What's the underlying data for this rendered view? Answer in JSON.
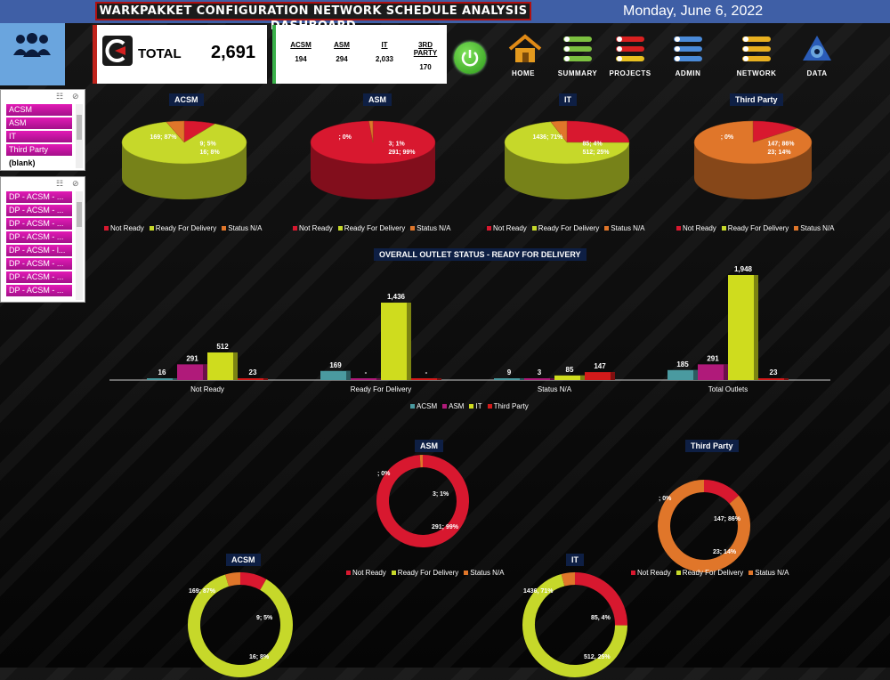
{
  "header": {
    "title": "WARKPAKKET CONFIGURATION NETWORK SCHEDULE ANALYSIS DASHBOARD",
    "date": "Monday, June 6, 2022"
  },
  "total_card": {
    "label": "TOTAL",
    "value": "2,691"
  },
  "stats": [
    {
      "label": "ACSM",
      "value": "194"
    },
    {
      "label": "ASM",
      "value": "294"
    },
    {
      "label": "IT",
      "value": "2,033"
    },
    {
      "label": "3RD PARTY",
      "value": "170"
    }
  ],
  "nav": [
    {
      "label": "HOME",
      "icon": "house-icon"
    },
    {
      "label": "SUMMARY",
      "icon": "list-icon"
    },
    {
      "label": "PROJECTS",
      "icon": "list-icon"
    },
    {
      "label": "ADMIN",
      "icon": "list-icon"
    },
    {
      "label": "NETWORK",
      "icon": "list-icon"
    },
    {
      "label": "DATA",
      "icon": "data-icon"
    }
  ],
  "slicer1": {
    "items": [
      "ACSM",
      "ASM",
      "IT",
      "Third Party",
      "(blank)"
    ]
  },
  "slicer2": {
    "items": [
      "DP - ACSM - ...",
      "DP - ACSM - ...",
      "DP - ACSM - ...",
      "DP - ACSM - ...",
      "DP - ACSM - l...",
      "DP - ACSM - ...",
      "DP - ACSM - ...",
      "DP - ACSM - ..."
    ]
  },
  "colors": {
    "not_ready": "#d8182f",
    "ready": "#c6d82a",
    "status_na": "#e0762a",
    "acsm": "#4a9aa0",
    "asm": "#b01a7a",
    "it": "#cfdc1e",
    "third": "#d41a1a"
  },
  "legend_status": [
    "Not Ready",
    "Ready For Delivery",
    "Status N/A"
  ],
  "legend_bar": [
    "ACSM",
    "ASM",
    "IT",
    "Third Party"
  ],
  "chart_data": [
    {
      "type": "pie",
      "title": "ACSM",
      "categories": [
        "Not Ready",
        "Ready For Delivery",
        "Status N/A"
      ],
      "values": [
        16,
        169,
        9
      ],
      "labels": [
        "16; 8%",
        "169; 87%",
        "9; 5%"
      ]
    },
    {
      "type": "pie",
      "title": "ASM",
      "categories": [
        "Not Ready",
        "Ready For Delivery",
        "Status N/A"
      ],
      "values": [
        291,
        0,
        3
      ],
      "labels": [
        "291; 99%",
        "; 0%",
        "3; 1%"
      ]
    },
    {
      "type": "pie",
      "title": "IT",
      "categories": [
        "Not Ready",
        "Ready For Delivery",
        "Status N/A"
      ],
      "values": [
        512,
        1436,
        85
      ],
      "labels": [
        "512; 25%",
        "1436; 71%",
        "85; 4%"
      ]
    },
    {
      "type": "pie",
      "title": "Third Party",
      "categories": [
        "Not Ready",
        "Ready For Delivery",
        "Status N/A"
      ],
      "values": [
        23,
        0,
        147
      ],
      "labels": [
        "23; 14%",
        "; 0%",
        "147; 86%"
      ]
    },
    {
      "type": "bar",
      "title": "OVERALL OUTLET STATUS - READY FOR DELIVERY",
      "categories": [
        "Not Ready",
        "Ready For Delivery",
        "Status N/A",
        "Total Outlets"
      ],
      "series": [
        {
          "name": "ACSM",
          "values": [
            16,
            169,
            9,
            185
          ],
          "labels": [
            "16",
            "169",
            "9",
            "185"
          ]
        },
        {
          "name": "ASM",
          "values": [
            291,
            0,
            3,
            291
          ],
          "labels": [
            "291",
            "-",
            "3",
            "291"
          ]
        },
        {
          "name": "IT",
          "values": [
            512,
            1436,
            85,
            1948
          ],
          "labels": [
            "512",
            "1,436",
            "85",
            "1,948"
          ]
        },
        {
          "name": "Third Party",
          "values": [
            23,
            0,
            147,
            23
          ],
          "labels": [
            "23",
            "-",
            "147",
            "23"
          ]
        }
      ]
    },
    {
      "type": "pie",
      "title": "ASM",
      "categories": [
        "Not Ready",
        "Ready For Delivery",
        "Status N/A"
      ],
      "values": [
        291,
        0,
        3
      ],
      "labels": [
        "291; 99%",
        "; 0%",
        "3; 1%"
      ]
    },
    {
      "type": "pie",
      "title": "Third Party",
      "categories": [
        "Not Ready",
        "Ready For Delivery",
        "Status N/A"
      ],
      "values": [
        23,
        0,
        147
      ],
      "labels": [
        "23; 14%",
        "; 0%",
        "147; 86%"
      ]
    },
    {
      "type": "pie",
      "title": "ACSM",
      "categories": [
        "Not Ready",
        "Ready For Delivery",
        "Status N/A"
      ],
      "values": [
        16,
        169,
        9
      ],
      "labels": [
        "16; 8%",
        "169; 87%",
        "9; 5%"
      ]
    },
    {
      "type": "pie",
      "title": "IT",
      "categories": [
        "Not Ready",
        "Ready For Delivery",
        "Status N/A"
      ],
      "values": [
        512,
        1436,
        85
      ],
      "labels": [
        "512, 25%",
        "1436, 71%",
        "85, 4%"
      ]
    }
  ]
}
